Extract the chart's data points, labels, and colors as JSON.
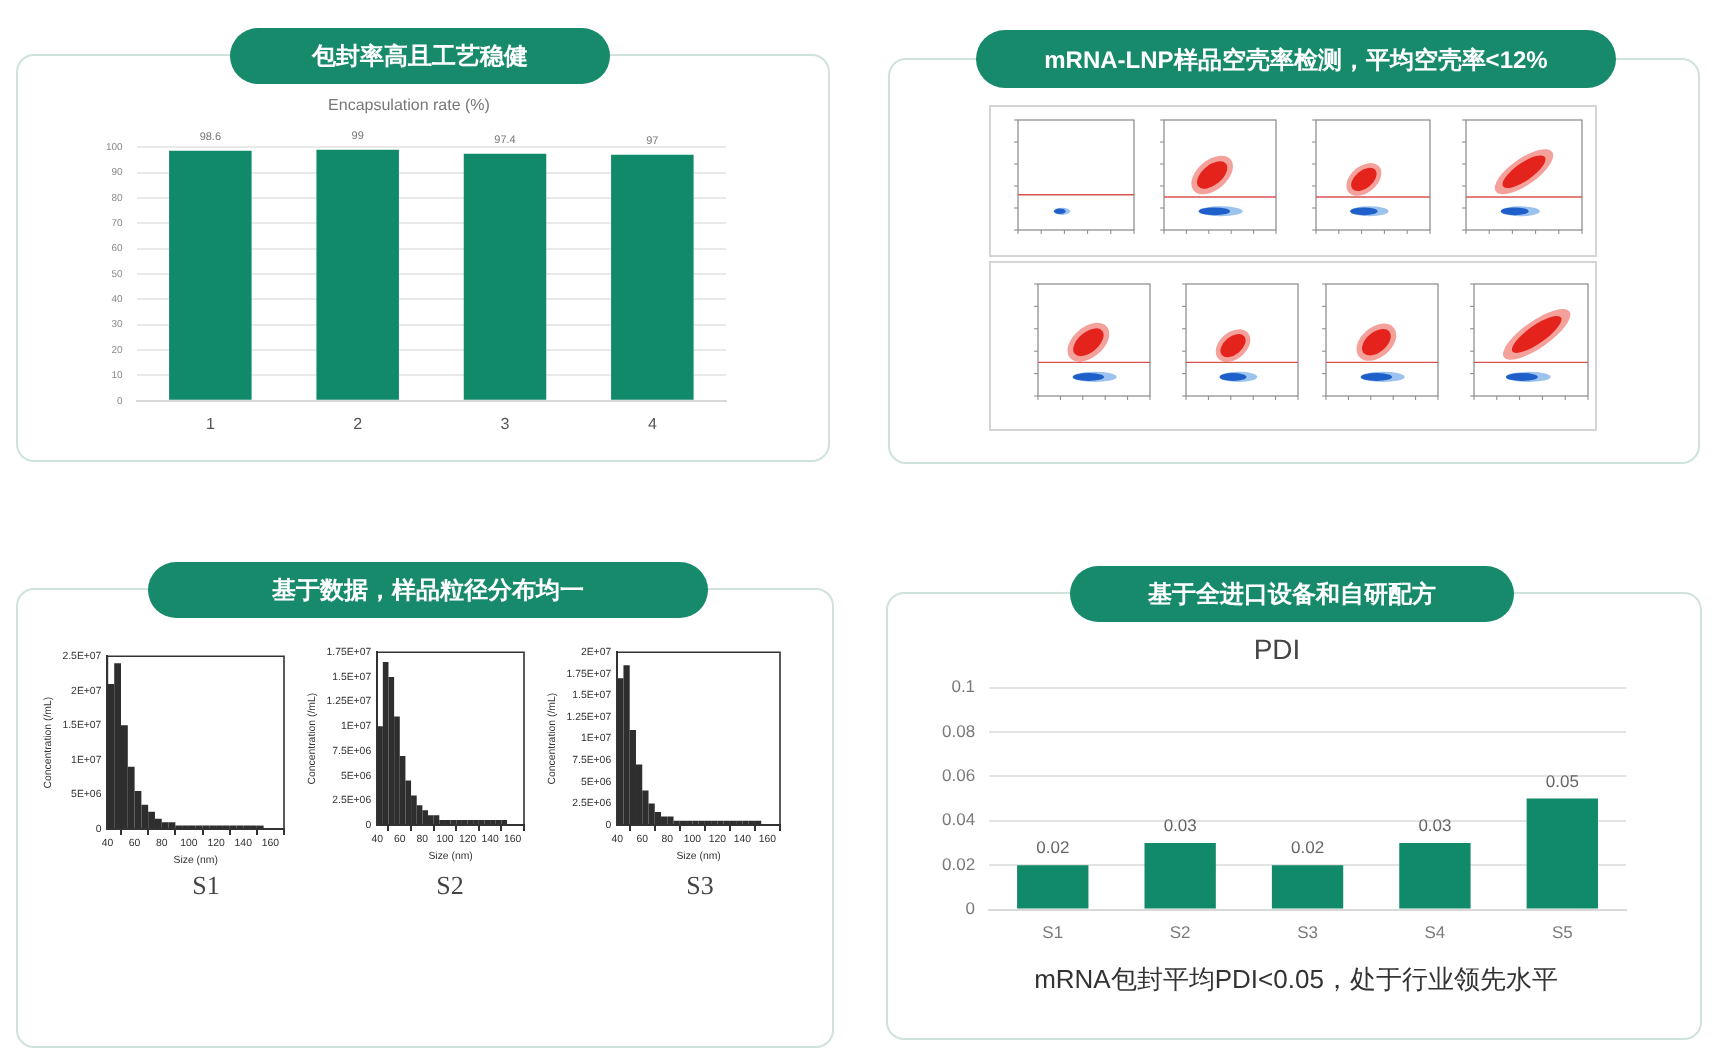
{
  "chart_data": [
    {
      "type": "bar",
      "title": "包封率高且工艺稳健",
      "subtitle": "Encapsulation rate (%)",
      "categories": [
        "1",
        "2",
        "3",
        "4"
      ],
      "values": [
        98.6,
        99,
        97.4,
        97
      ],
      "color": "#108a68",
      "ylim": [
        0,
        100
      ],
      "yticks": [
        0,
        10,
        20,
        30,
        40,
        50,
        60,
        70,
        80,
        90,
        100
      ],
      "grid": "y",
      "data_labels": true
    },
    {
      "type": "other",
      "title": "mRNA-LNP样品空壳率检测，平均空壳率<12%"
    },
    {
      "type": "histogram",
      "title": "基于数据，样品粒径分布均一",
      "xlabel": "Size (nm)",
      "ylabel": "Concentration (/mL)",
      "annotations": [
        "S1"
      ],
      "bins": [
        40,
        45,
        50,
        55,
        60,
        65,
        70,
        75,
        80,
        85,
        90,
        95,
        100,
        105,
        110,
        115,
        120,
        125,
        130,
        135,
        140,
        145,
        150,
        155,
        160,
        165,
        170
      ],
      "values": [
        21000000,
        24000000,
        15000000,
        9000000,
        5500000,
        3500000,
        2500000,
        1500000,
        1000000,
        1000000,
        500000,
        500000,
        500000,
        500000,
        500000,
        500000,
        500000,
        500000,
        500000,
        500000,
        500000,
        500000,
        500000,
        0,
        0,
        0
      ],
      "color": "#2e2e2e",
      "xlim": [
        40,
        170
      ],
      "xticks": [
        40,
        60,
        80,
        100,
        120,
        140,
        160
      ],
      "ylim": [
        0,
        25000000
      ],
      "yticks": [
        0,
        {
          "value": 5000000,
          "label": "5E+06"
        },
        {
          "value": 10000000,
          "label": "1E+07"
        },
        {
          "value": 15000000,
          "label": "1.5E+07"
        },
        {
          "value": 20000000,
          "label": "2E+07"
        },
        {
          "value": 25000000,
          "label": "2.5E+07"
        }
      ]
    },
    {
      "type": "histogram",
      "xlabel": "Size (nm)",
      "ylabel": "Concentration (/mL)",
      "annotations": [
        "S2"
      ],
      "bins": [
        40,
        45,
        50,
        55,
        60,
        65,
        70,
        75,
        80,
        85,
        90,
        95,
        100,
        105,
        110,
        115,
        120,
        125,
        130,
        135,
        140,
        145,
        150,
        155,
        160,
        165,
        170
      ],
      "values": [
        10000000,
        16500000,
        15000000,
        11000000,
        7000000,
        4500000,
        3000000,
        2000000,
        1500000,
        1000000,
        1000000,
        500000,
        500000,
        500000,
        500000,
        500000,
        500000,
        500000,
        500000,
        500000,
        500000,
        500000,
        500000,
        0,
        0,
        0
      ],
      "color": "#2e2e2e",
      "xlim": [
        40,
        170
      ],
      "xticks": [
        40,
        60,
        80,
        100,
        120,
        140,
        160
      ],
      "ylim": [
        0,
        17500000
      ],
      "yticks": [
        0,
        {
          "value": 2500000,
          "label": "2.5E+06"
        },
        {
          "value": 5000000,
          "label": "5E+06"
        },
        {
          "value": 7500000,
          "label": "7.5E+06"
        },
        {
          "value": 10000000,
          "label": "1E+07"
        },
        {
          "value": 12500000,
          "label": "1.25E+07"
        },
        {
          "value": 15000000,
          "label": "1.5E+07"
        },
        {
          "value": 17500000,
          "label": "1.75E+07"
        }
      ]
    },
    {
      "type": "histogram",
      "xlabel": "Size (nm)",
      "ylabel": "Concentration (/mL)",
      "annotations": [
        "S3"
      ],
      "bins": [
        40,
        45,
        50,
        55,
        60,
        65,
        70,
        75,
        80,
        85,
        90,
        95,
        100,
        105,
        110,
        115,
        120,
        125,
        130,
        135,
        140,
        145,
        150,
        155,
        160,
        165,
        170
      ],
      "values": [
        17000000,
        18500000,
        11000000,
        7000000,
        4000000,
        2500000,
        1500000,
        1000000,
        1000000,
        500000,
        500000,
        500000,
        500000,
        500000,
        500000,
        500000,
        500000,
        500000,
        500000,
        500000,
        500000,
        500000,
        500000,
        0,
        0,
        0
      ],
      "color": "#2e2e2e",
      "xlim": [
        40,
        170
      ],
      "xticks": [
        40,
        60,
        80,
        100,
        120,
        140,
        160
      ],
      "ylim": [
        0,
        20000000
      ],
      "yticks": [
        0,
        {
          "value": 2500000,
          "label": "2.5E+06"
        },
        {
          "value": 5000000,
          "label": "5E+06"
        },
        {
          "value": 7500000,
          "label": "7.5E+06"
        },
        {
          "value": 10000000,
          "label": "1E+07"
        },
        {
          "value": 12500000,
          "label": "1.25E+07"
        },
        {
          "value": 15000000,
          "label": "1.5E+07"
        },
        {
          "value": 17500000,
          "label": "1.75E+07"
        },
        {
          "value": 20000000,
          "label": "2E+07"
        }
      ]
    },
    {
      "type": "bar",
      "title": "基于全进口设备和自研配方",
      "subtitle": "PDI",
      "annotations": [
        "mRNA包封平均PDI<0.05，处于行业领先水平"
      ],
      "categories": [
        "S1",
        "S2",
        "S3",
        "S4",
        "S5"
      ],
      "values": [
        0.02,
        0.03,
        0.02,
        0.03,
        0.05
      ],
      "color": "#108a68",
      "ylim": [
        0,
        0.1
      ],
      "yticks": [
        0,
        0.02,
        0.04,
        0.06,
        0.08,
        0.1
      ],
      "grid": "y",
      "data_labels": true
    }
  ]
}
